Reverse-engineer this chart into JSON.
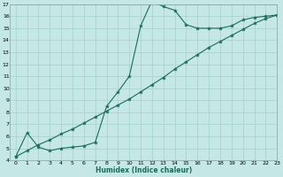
{
  "title": "",
  "xlabel": "Humidex (Indice chaleur)",
  "bg_color": "#c5e8e4",
  "grid_color": "#aad4cf",
  "line_color": "#1a6b5a",
  "ylim": [
    4,
    17
  ],
  "xlim": [
    -0.5,
    23
  ],
  "yticks": [
    4,
    5,
    6,
    7,
    8,
    9,
    10,
    11,
    12,
    13,
    14,
    15,
    16,
    17
  ],
  "xticks": [
    0,
    1,
    2,
    3,
    4,
    5,
    6,
    7,
    8,
    9,
    10,
    11,
    12,
    13,
    14,
    15,
    16,
    17,
    18,
    19,
    20,
    21,
    22,
    23
  ],
  "curve1_x": [
    0,
    1,
    2,
    3,
    4,
    5,
    6,
    7,
    8,
    9,
    10,
    11,
    12,
    13,
    14,
    15,
    16,
    17,
    18,
    19,
    20,
    21,
    22,
    23
  ],
  "curve1_y": [
    4.3,
    6.3,
    5.1,
    4.8,
    5.0,
    5.1,
    5.2,
    5.5,
    8.5,
    9.7,
    11.0,
    15.2,
    17.3,
    16.8,
    16.5,
    15.3,
    15.0,
    15.0,
    15.0,
    15.2,
    15.7,
    15.9,
    16.0,
    16.1
  ],
  "curve2_x": [
    0,
    1,
    2,
    3,
    4,
    5,
    6,
    7,
    8,
    9,
    10,
    11,
    12,
    13,
    14,
    15,
    16,
    17,
    18,
    19,
    20,
    21,
    22,
    23
  ],
  "curve2_y": [
    4.3,
    4.8,
    5.3,
    5.7,
    6.2,
    6.6,
    7.1,
    7.6,
    8.1,
    8.6,
    9.1,
    9.7,
    10.3,
    10.9,
    11.6,
    12.2,
    12.8,
    13.4,
    13.9,
    14.4,
    14.9,
    15.4,
    15.8,
    16.1
  ]
}
